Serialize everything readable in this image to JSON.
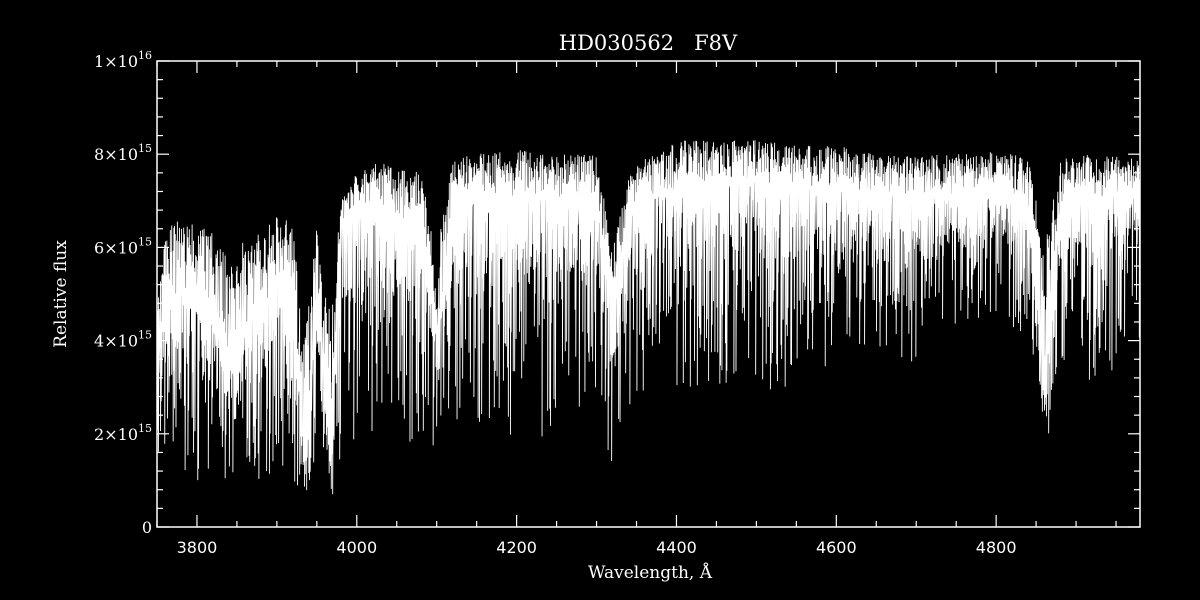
{
  "chart_data": {
    "type": "line",
    "title": "HD030562   F8V",
    "xlabel": "Wavelength, Å",
    "ylabel": "Relative flux",
    "xlim": [
      3750,
      4980
    ],
    "ylim": [
      0,
      1e+16
    ],
    "x_ticks": [
      {
        "value": 3800,
        "label": "3800"
      },
      {
        "value": 4000,
        "label": "4000"
      },
      {
        "value": 4200,
        "label": "4200"
      },
      {
        "value": 4400,
        "label": "4400"
      },
      {
        "value": 4600,
        "label": "4600"
      },
      {
        "value": 4800,
        "label": "4800"
      }
    ],
    "y_ticks": [
      {
        "value": 0,
        "mantissa": "0",
        "exponent": ""
      },
      {
        "value": 2000000000000000.0,
        "mantissa": "2×10",
        "exponent": "15"
      },
      {
        "value": 4000000000000000.0,
        "mantissa": "4×10",
        "exponent": "15"
      },
      {
        "value": 6000000000000000.0,
        "mantissa": "6×10",
        "exponent": "15"
      },
      {
        "value": 8000000000000000.0,
        "mantissa": "8×10",
        "exponent": "15"
      },
      {
        "value": 1e+16,
        "mantissa": "1×10",
        "exponent": "16"
      }
    ],
    "grid": false,
    "colors": {
      "background": "#000000",
      "foreground": "#ffffff"
    },
    "series": [
      {
        "style": "dense absorption spectrum; envelope of continuum (upper) and absorption-line minima (lower)",
        "x": [
          3750,
          3760,
          3780,
          3800,
          3820,
          3840,
          3860,
          3880,
          3900,
          3920,
          3935,
          3950,
          3968,
          3980,
          4000,
          4020,
          4050,
          4080,
          4101,
          4120,
          4150,
          4200,
          4250,
          4300,
          4320,
          4340,
          4360,
          4400,
          4450,
          4500,
          4550,
          4600,
          4650,
          4700,
          4750,
          4800,
          4840,
          4861,
          4880,
          4920,
          4950,
          4980
        ],
        "upper": [
          5000000000000000.0,
          6400000000000000.0,
          6600000000000000.0,
          6500000000000000.0,
          6300000000000000.0,
          5700000000000000.0,
          6200000000000000.0,
          6300000000000000.0,
          6700000000000000.0,
          6600000000000000.0,
          4000000000000000.0,
          6500000000000000.0,
          4500000000000000.0,
          7000000000000000.0,
          7600000000000000.0,
          7900000000000000.0,
          7700000000000000.0,
          7600000000000000.0,
          6000000000000000.0,
          7900000000000000.0,
          8000000000000000.0,
          8100000000000000.0,
          8000000000000000.0,
          8000000000000000.0,
          6000000000000000.0,
          7600000000000000.0,
          7900000000000000.0,
          8300000000000000.0,
          8300000000000000.0,
          8300000000000000.0,
          8200000000000000.0,
          8200000000000000.0,
          8000000000000000.0,
          8000000000000000.0,
          8000000000000000.0,
          8100000000000000.0,
          7900000000000000.0,
          6000000000000000.0,
          7900000000000000.0,
          8000000000000000.0,
          8000000000000000.0,
          8000000000000000.0
        ],
        "lower": [
          1000000000000000.0,
          1500000000000000.0,
          1400000000000000.0,
          700000000000000.0,
          600000000000000.0,
          900000000000000.0,
          1000000000000000.0,
          1000000000000000.0,
          1200000000000000.0,
          1000000000000000.0,
          400000000000000.0,
          1500000000000000.0,
          400000000000000.0,
          1500000000000000.0,
          1700000000000000.0,
          2000000000000000.0,
          1000000000000000.0,
          2000000000000000.0,
          1500000000000000.0,
          2000000000000000.0,
          2200000000000000.0,
          1800000000000000.0,
          2000000000000000.0,
          2500000000000000.0,
          1300000000000000.0,
          2600000000000000.0,
          2800000000000000.0,
          2800000000000000.0,
          3000000000000000.0,
          3200000000000000.0,
          2500000000000000.0,
          3800000000000000.0,
          3900000000000000.0,
          3500000000000000.0,
          4200000000000000.0,
          4300000000000000.0,
          4000000000000000.0,
          1400000000000000.0,
          3500000000000000.0,
          2600000000000000.0,
          3400000000000000.0,
          4000000000000000.0
        ],
        "cont": [
          3500000000000000.0,
          4600000000000000.0,
          5000000000000000.0,
          4800000000000000.0,
          4500000000000000.0,
          3400000000000000.0,
          4300000000000000.0,
          4600000000000000.0,
          5200000000000000.0,
          5000000000000000.0,
          1200000000000000.0,
          4800000000000000.0,
          1500000000000000.0,
          6500000000000000.0,
          6800000000000000.0,
          7000000000000000.0,
          6600000000000000.0,
          6500000000000000.0,
          4000000000000000.0,
          6800000000000000.0,
          7000000000000000.0,
          7100000000000000.0,
          7000000000000000.0,
          6900000000000000.0,
          4500000000000000.0,
          6800000000000000.0,
          7000000000000000.0,
          7200000000000000.0,
          7300000000000000.0,
          7400000000000000.0,
          7300000000000000.0,
          7300000000000000.0,
          7100000000000000.0,
          7100000000000000.0,
          7100000000000000.0,
          7200000000000000.0,
          6900000000000000.0,
          3000000000000000.0,
          6900000000000000.0,
          7100000000000000.0,
          7100000000000000.0,
          7200000000000000.0
        ]
      }
    ]
  }
}
